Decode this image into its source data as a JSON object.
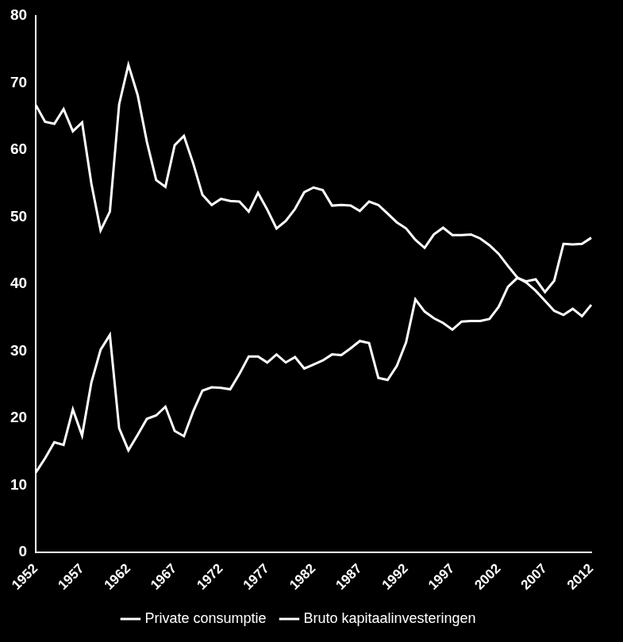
{
  "chart_data": {
    "type": "line",
    "categories": [
      "1952",
      null,
      null,
      null,
      null,
      "1957",
      null,
      null,
      null,
      null,
      "1962",
      null,
      null,
      null,
      null,
      "1967",
      null,
      null,
      null,
      null,
      "1972",
      null,
      null,
      null,
      null,
      "1977",
      null,
      null,
      null,
      null,
      "1982",
      null,
      null,
      null,
      null,
      "1987",
      null,
      null,
      null,
      null,
      "1992",
      null,
      null,
      null,
      null,
      "1997",
      null,
      null,
      null,
      null,
      "2002",
      null,
      null,
      null,
      null,
      "2007",
      null,
      null,
      null,
      null,
      "2012"
    ],
    "series": [
      {
        "name": "Private consumptie",
        "color": "#ffffff",
        "values": [
          66.7,
          64.2,
          63.9,
          66.1,
          62.8,
          64.1,
          55.0,
          48.0,
          50.8,
          66.8,
          72.7,
          68.2,
          61.2,
          55.5,
          54.5,
          60.7,
          62.1,
          58.0,
          53.3,
          51.8,
          52.7,
          52.4,
          52.3,
          50.8,
          53.6,
          51.1,
          48.3,
          49.4,
          51.2,
          53.7,
          54.4,
          54.0,
          51.7,
          51.8,
          51.7,
          50.9,
          52.3,
          51.8,
          50.5,
          49.2,
          48.3,
          46.6,
          45.4,
          47.4,
          48.4,
          47.3,
          47.3,
          47.4,
          46.8,
          45.8,
          44.5,
          42.7,
          41.0,
          40.2,
          39.0,
          37.5,
          36.0,
          35.4,
          36.3,
          35.2,
          36.9
        ]
      },
      {
        "name": "Bruto kapitaalinvesteringen",
        "color": "#ffffff",
        "values": [
          11.9,
          14.0,
          16.4,
          16.0,
          21.3,
          17.4,
          25.3,
          30.2,
          32.4,
          18.5,
          15.2,
          17.5,
          19.9,
          20.4,
          21.7,
          18.1,
          17.3,
          21.0,
          24.1,
          24.6,
          24.5,
          24.3,
          26.6,
          29.2,
          29.2,
          28.3,
          29.5,
          28.3,
          29.1,
          27.4,
          28.0,
          28.6,
          29.5,
          29.4,
          30.4,
          31.5,
          31.2,
          26.0,
          25.7,
          27.8,
          31.3,
          37.7,
          35.9,
          34.9,
          34.2,
          33.2,
          34.4,
          34.5,
          34.5,
          34.8,
          36.6,
          39.6,
          40.9,
          40.4,
          40.7,
          38.8,
          40.5,
          46.0,
          45.9,
          46.0,
          46.9
        ]
      }
    ],
    "ylim": [
      0,
      80
    ],
    "yticks": [
      0,
      10,
      20,
      30,
      40,
      50,
      60,
      70,
      80
    ],
    "grid": false,
    "legend": "bottom"
  }
}
